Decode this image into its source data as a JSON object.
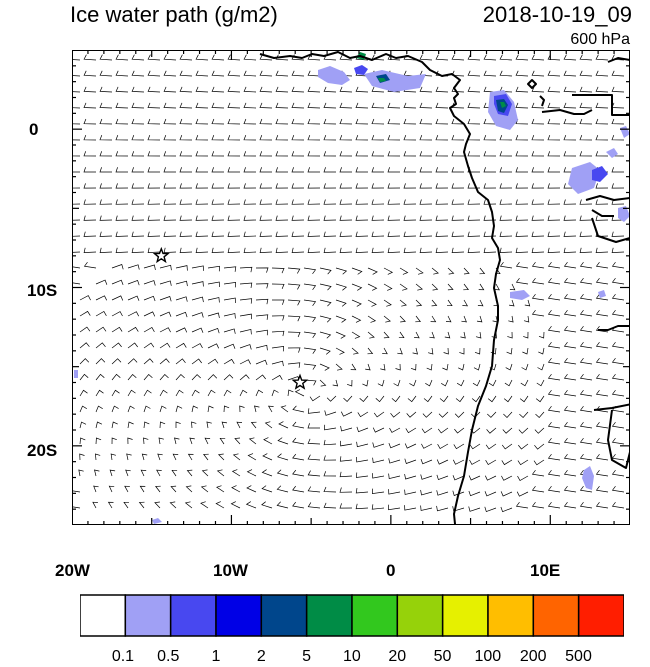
{
  "header": {
    "title": "Ice water path (g/m2)",
    "datetime": "2018-10-19_09",
    "level": "600 hPa"
  },
  "map": {
    "lon_range": [
      -20,
      15
    ],
    "lat_range": [
      -25,
      5
    ],
    "y_axis_labels": [
      "0",
      "10S",
      "20S"
    ],
    "x_axis_labels": [
      "20W",
      "10W",
      "0",
      "10E"
    ],
    "station_markers": [
      {
        "name": "star-marker-1",
        "lon": -14.4,
        "lat": -8.0
      },
      {
        "name": "star-marker-2",
        "lon": -5.7,
        "lat": -16.0
      }
    ]
  },
  "colorbar": {
    "colors": [
      "#ffffff",
      "#a0a0f5",
      "#4848f0",
      "#0000e6",
      "#00468c",
      "#008c46",
      "#32c81e",
      "#96d20a",
      "#e6f000",
      "#ffbe00",
      "#ff6400",
      "#ff1e00"
    ],
    "labels": [
      "0.1",
      "0.5",
      "1",
      "2",
      "5",
      "10",
      "20",
      "50",
      "100",
      "200",
      "500"
    ]
  }
}
